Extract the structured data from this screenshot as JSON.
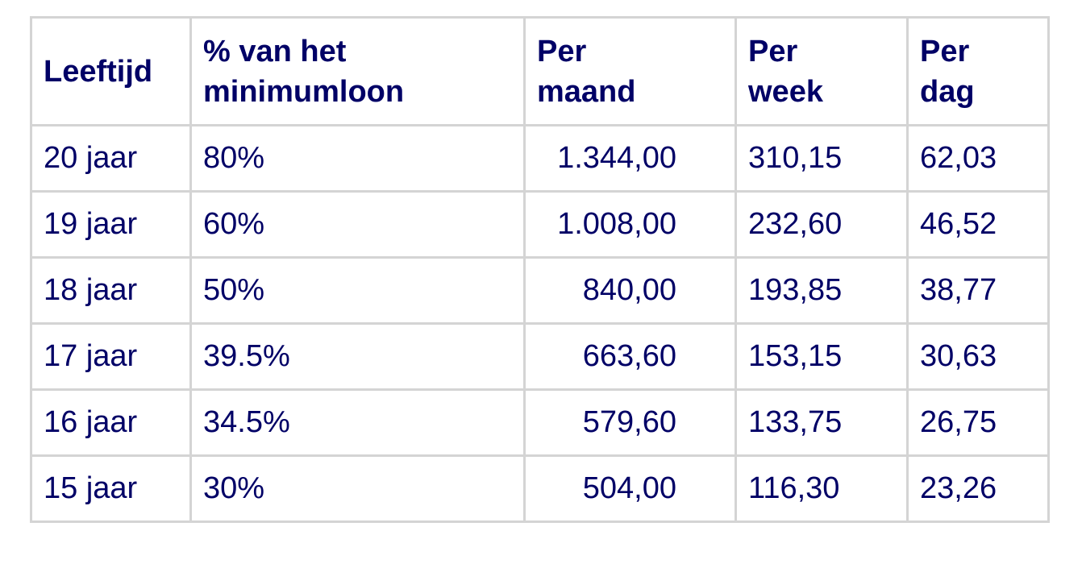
{
  "table": {
    "header": [
      [
        "Leeftijd"
      ],
      [
        "% van het",
        "minimumloon"
      ],
      [
        "Per",
        "maand"
      ],
      [
        "Per",
        "week"
      ],
      [
        "Per",
        "dag"
      ]
    ],
    "rows": [
      [
        "20 jaar",
        "80%",
        "1.344,00",
        "310,15",
        "62,03"
      ],
      [
        "19 jaar",
        "60%",
        "1.008,00",
        "232,60",
        "46,52"
      ],
      [
        "18 jaar",
        "50%",
        "840,00",
        "193,85",
        "38,77"
      ],
      [
        "17 jaar",
        "39.5%",
        "663,60",
        "153,15",
        "30,63"
      ],
      [
        "16 jaar",
        "34.5%",
        "579,60",
        "133,75",
        "26,75"
      ],
      [
        "15 jaar",
        "30%",
        "504,00",
        "116,30",
        "23,26"
      ]
    ]
  }
}
